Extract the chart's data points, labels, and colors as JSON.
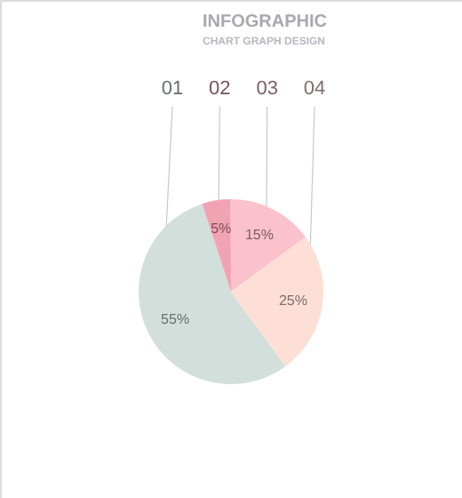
{
  "chart_data": {
    "type": "pie",
    "title": "INFOGRAPHIC",
    "subtitle": "CHART GRAPH DESIGN",
    "categories": [
      "01",
      "02",
      "03",
      "04"
    ],
    "values": [
      55,
      5,
      15,
      25
    ],
    "colors": [
      "#d3dfdb",
      "#f2a3b3",
      "#fbc1cc",
      "#fddfd5"
    ],
    "value_labels": [
      "55%",
      "5%",
      "15%",
      "25%"
    ]
  }
}
